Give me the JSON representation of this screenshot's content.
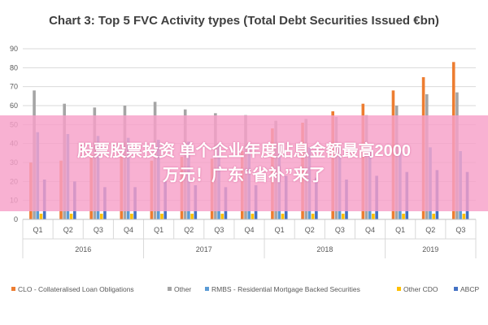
{
  "chart_data": {
    "type": "bar",
    "title": "Chart 3: Top 5 FVC Activity types (Total Debt Securities Issued €bn)",
    "ylim": [
      0,
      90
    ],
    "yticks": [
      0,
      10,
      20,
      30,
      40,
      50,
      60,
      70,
      80,
      90
    ],
    "grid": true,
    "legend_position": "bottom",
    "categories": [
      "Q1",
      "Q2",
      "Q3",
      "Q4",
      "Q1",
      "Q2",
      "Q3",
      "Q4",
      "Q1",
      "Q2",
      "Q3",
      "Q4",
      "Q1",
      "Q2",
      "Q3"
    ],
    "year_groups": [
      {
        "label": "2016",
        "count": 4
      },
      {
        "label": "2017",
        "count": 4
      },
      {
        "label": "2018",
        "count": 4
      },
      {
        "label": "2019",
        "count": 3
      }
    ],
    "series": [
      {
        "name": "CLO - Collateralised Loan Obligations",
        "color": "#ED7D31",
        "values": [
          30,
          31,
          34,
          33,
          31,
          33,
          32,
          36,
          48,
          51,
          57,
          61,
          68,
          75,
          83
        ]
      },
      {
        "name": "Other",
        "color": "#A5A5A5",
        "values": [
          68,
          61,
          59,
          60,
          62,
          58,
          56,
          55,
          52,
          53,
          54,
          55,
          60,
          66,
          67
        ]
      },
      {
        "name": "RMBS - Residential Mortgage Backed Securities",
        "color": "#5B9BD5",
        "values": [
          46,
          45,
          44,
          43,
          42,
          41,
          40,
          40,
          39,
          38,
          38,
          37,
          36,
          38,
          36
        ]
      },
      {
        "name": "Other CDO",
        "color": "#FFC000",
        "values": [
          3,
          3,
          3,
          3,
          3,
          3,
          3,
          3,
          3,
          3,
          3,
          3,
          3,
          3,
          3
        ]
      },
      {
        "name": "ABCP",
        "color": "#4472C4",
        "values": [
          21,
          20,
          17,
          17,
          20,
          18,
          17,
          18,
          23,
          22,
          21,
          23,
          25,
          26,
          25
        ]
      }
    ]
  },
  "overlay": {
    "line1": "股票股票投资 单个企业年度贴息金额最高2000",
    "line2": "万元！广东“省补”来了"
  }
}
